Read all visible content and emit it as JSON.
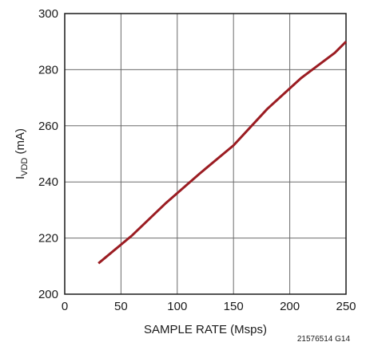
{
  "chart_data": {
    "type": "line",
    "title": "",
    "xlabel": "SAMPLE RATE (Msps)",
    "ylabel": {
      "main": "I",
      "subscript": "VDD",
      "unit": " (mA)"
    },
    "xlim": [
      0,
      250
    ],
    "ylim": [
      200,
      300
    ],
    "xticks": [
      "0",
      "50",
      "100",
      "150",
      "200",
      "250"
    ],
    "yticks": [
      "200",
      "220",
      "240",
      "260",
      "280",
      "300"
    ],
    "grid": true,
    "series": [
      {
        "color": "#9b1c22",
        "x": [
          30,
          60,
          90,
          120,
          150,
          180,
          210,
          240,
          250
        ],
        "y": [
          211,
          221,
          232.5,
          243,
          253,
          266,
          277,
          286,
          290
        ]
      }
    ],
    "figure_id": "21576514 G14"
  }
}
